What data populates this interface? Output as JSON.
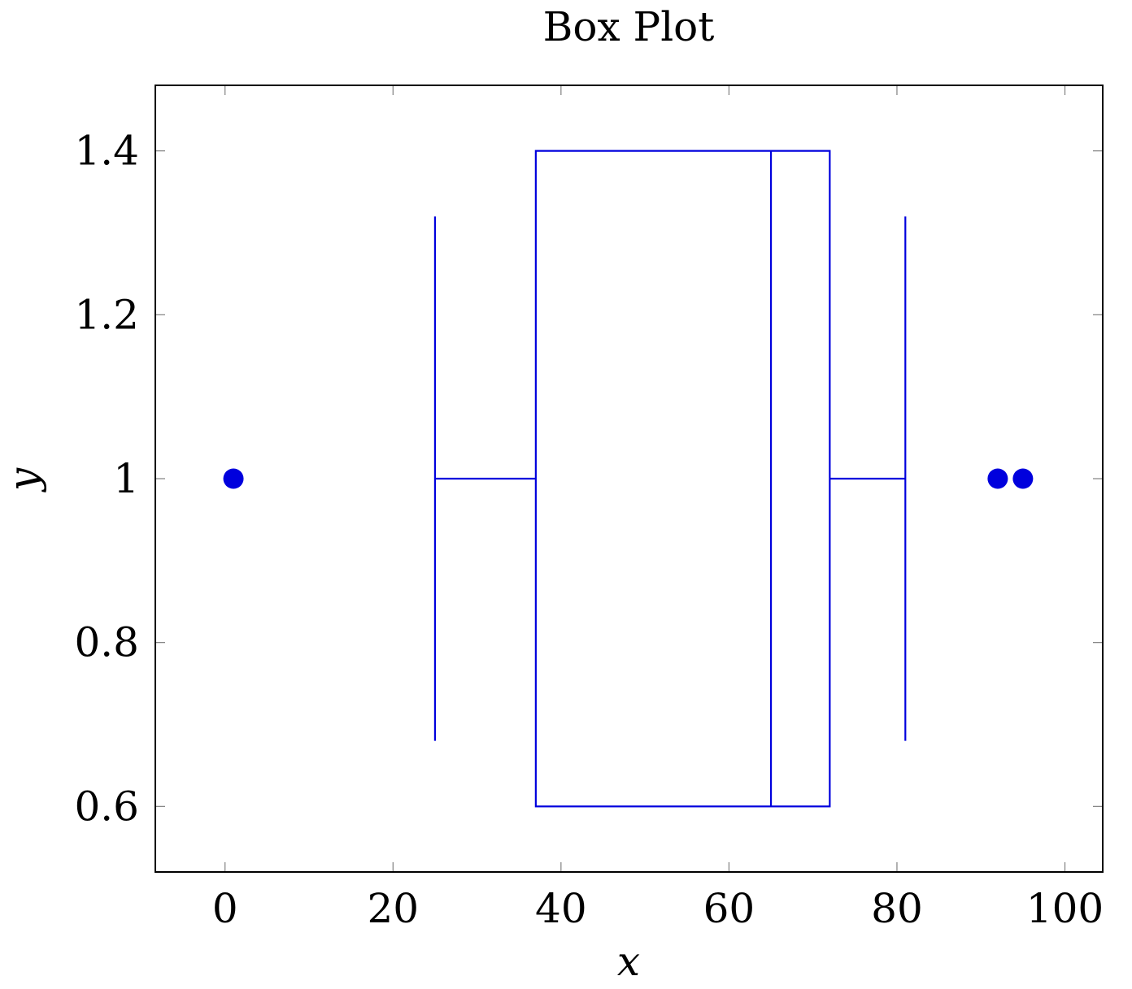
{
  "chart_data": {
    "type": "boxplot",
    "title": "Box Plot",
    "xlabel": "x",
    "ylabel": "y",
    "xlim": [
      -8.3,
      104.5
    ],
    "ylim": [
      0.52,
      1.48
    ],
    "xticks": [
      0,
      20,
      40,
      60,
      80,
      100
    ],
    "xtick_labels": [
      "0",
      "20",
      "40",
      "60",
      "80",
      "100"
    ],
    "yticks": [
      0.6,
      0.8,
      1.0,
      1.2,
      1.4
    ],
    "ytick_labels": [
      "0.6",
      "0.8",
      "1",
      "1.2",
      "1.4"
    ],
    "grid": false,
    "color": "#0000dd",
    "box": {
      "position": 1,
      "lower_whisker": 25,
      "lower_quartile": 37,
      "median": 65,
      "upper_quartile": 72,
      "upper_whisker": 81,
      "box_extent": [
        0.6,
        1.4
      ],
      "whisker_cap_extent": [
        0.68,
        1.32
      ]
    },
    "outliers": [
      {
        "x": 1,
        "y": 1
      },
      {
        "x": 92,
        "y": 1
      },
      {
        "x": 95,
        "y": 1
      }
    ]
  }
}
